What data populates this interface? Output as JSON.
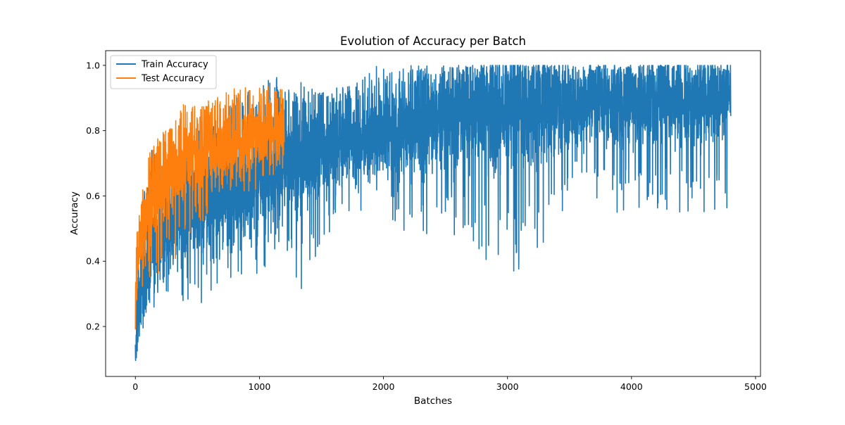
{
  "chart_data": {
    "type": "line",
    "title": "Evolution of Accuracy per Batch",
    "xlabel": "Batches",
    "ylabel": "Accuracy",
    "xlim": [
      -240,
      5040
    ],
    "ylim": [
      0.047,
      1.045
    ],
    "xticks": [
      0,
      1000,
      2000,
      3000,
      4000,
      5000
    ],
    "yticks": [
      0.2,
      0.4,
      0.6,
      0.8,
      1.0
    ],
    "xtick_labels": [
      "0",
      "1000",
      "2000",
      "3000",
      "4000",
      "5000"
    ],
    "ytick_labels": [
      "0.2",
      "0.4",
      "0.6",
      "0.8",
      "1.0"
    ],
    "legend_position": "upper-left",
    "series": [
      {
        "name": "Train Accuracy",
        "label": "Train Accuracy",
        "color": "#1f77b4",
        "num_points": 4800,
        "x_range": [
          0,
          4800
        ],
        "lower_envelope": [
          [
            0,
            0.09
          ],
          [
            50,
            0.18
          ],
          [
            120,
            0.25
          ],
          [
            250,
            0.27
          ],
          [
            400,
            0.27
          ],
          [
            600,
            0.27
          ],
          [
            800,
            0.36
          ],
          [
            1000,
            0.36
          ],
          [
            1200,
            0.45
          ],
          [
            1360,
            0.27
          ],
          [
            1500,
            0.45
          ],
          [
            1700,
            0.55
          ],
          [
            2000,
            0.55
          ],
          [
            2300,
            0.45
          ],
          [
            2600,
            0.45
          ],
          [
            3050,
            0.36
          ],
          [
            3300,
            0.45
          ],
          [
            3600,
            0.64
          ],
          [
            3800,
            0.55
          ],
          [
            4400,
            0.55
          ],
          [
            4800,
            0.55
          ]
        ],
        "upper_envelope": [
          [
            0,
            0.25
          ],
          [
            50,
            0.55
          ],
          [
            120,
            0.75
          ],
          [
            250,
            0.78
          ],
          [
            400,
            0.8
          ],
          [
            600,
            0.85
          ],
          [
            800,
            0.9
          ],
          [
            1000,
            0.95
          ],
          [
            1200,
            0.97
          ],
          [
            1500,
            0.92
          ],
          [
            1800,
            0.95
          ],
          [
            1900,
            1.0
          ],
          [
            2500,
            1.0
          ],
          [
            3000,
            1.0
          ],
          [
            4000,
            1.0
          ],
          [
            4800,
            1.0
          ]
        ],
        "typical": [
          [
            0,
            0.12
          ],
          [
            50,
            0.33
          ],
          [
            150,
            0.45
          ],
          [
            300,
            0.52
          ],
          [
            500,
            0.58
          ],
          [
            800,
            0.63
          ],
          [
            1200,
            0.7
          ],
          [
            1600,
            0.75
          ],
          [
            2000,
            0.79
          ],
          [
            2500,
            0.83
          ],
          [
            3000,
            0.86
          ],
          [
            3500,
            0.88
          ],
          [
            4000,
            0.89
          ],
          [
            4800,
            0.9
          ]
        ]
      },
      {
        "name": "Test Accuracy",
        "label": "Test Accuracy",
        "color": "#ff7f0e",
        "num_points": 1200,
        "x_range": [
          0,
          1200
        ],
        "lower_envelope": [
          [
            0,
            0.16
          ],
          [
            30,
            0.25
          ],
          [
            100,
            0.35
          ],
          [
            200,
            0.36
          ],
          [
            300,
            0.36
          ],
          [
            400,
            0.45
          ],
          [
            600,
            0.55
          ],
          [
            800,
            0.6
          ],
          [
            1000,
            0.6
          ],
          [
            1200,
            0.68
          ]
        ],
        "upper_envelope": [
          [
            0,
            0.44
          ],
          [
            30,
            0.55
          ],
          [
            100,
            0.72
          ],
          [
            200,
            0.8
          ],
          [
            300,
            0.82
          ],
          [
            400,
            0.89
          ],
          [
            600,
            0.9
          ],
          [
            800,
            0.93
          ],
          [
            1000,
            0.94
          ],
          [
            1200,
            0.93
          ]
        ],
        "typical": [
          [
            0,
            0.28
          ],
          [
            30,
            0.45
          ],
          [
            100,
            0.57
          ],
          [
            200,
            0.63
          ],
          [
            300,
            0.66
          ],
          [
            400,
            0.7
          ],
          [
            600,
            0.72
          ],
          [
            800,
            0.76
          ],
          [
            1000,
            0.79
          ],
          [
            1200,
            0.81
          ]
        ]
      }
    ]
  }
}
